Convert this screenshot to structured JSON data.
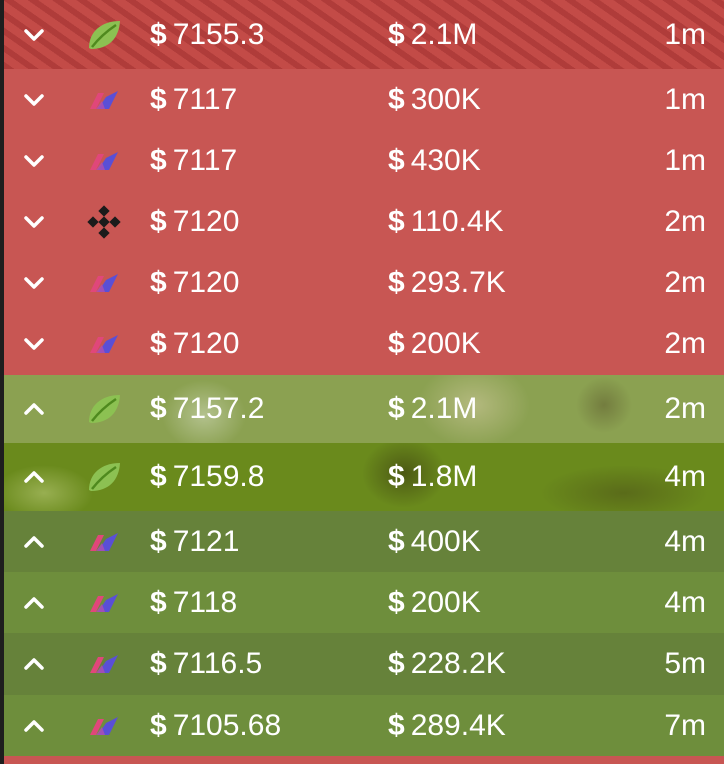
{
  "colors": {
    "sell_bg": "#c85653",
    "buy_bg_a": "#6e8e3c",
    "buy_bg_b": "#66823a",
    "text": "#ffffff"
  },
  "trades": [
    {
      "side": "sell",
      "direction_icon": "chevron-down-icon",
      "exchange_icon": "leaf-icon",
      "currency": "$",
      "price": "7155.3",
      "amount": "2.1M",
      "time": "1m",
      "highlight": "large"
    },
    {
      "side": "sell",
      "direction_icon": "chevron-down-icon",
      "exchange_icon": "flag-icon",
      "currency": "$",
      "price": "7117",
      "amount": "300K",
      "time": "1m"
    },
    {
      "side": "sell",
      "direction_icon": "chevron-down-icon",
      "exchange_icon": "flag-icon",
      "currency": "$",
      "price": "7117",
      "amount": "430K",
      "time": "1m"
    },
    {
      "side": "sell",
      "direction_icon": "chevron-down-icon",
      "exchange_icon": "diamond-icon",
      "currency": "$",
      "price": "7120",
      "amount": "110.4K",
      "time": "2m"
    },
    {
      "side": "sell",
      "direction_icon": "chevron-down-icon",
      "exchange_icon": "flag-icon",
      "currency": "$",
      "price": "7120",
      "amount": "293.7K",
      "time": "2m"
    },
    {
      "side": "sell",
      "direction_icon": "chevron-down-icon",
      "exchange_icon": "flag-icon",
      "currency": "$",
      "price": "7120",
      "amount": "200K",
      "time": "2m"
    },
    {
      "side": "buy",
      "direction_icon": "chevron-up-icon",
      "exchange_icon": "leaf-icon",
      "currency": "$",
      "price": "7157.2",
      "amount": "2.1M",
      "time": "2m",
      "highlight": "large"
    },
    {
      "side": "buy",
      "direction_icon": "chevron-up-icon",
      "exchange_icon": "leaf-icon",
      "currency": "$",
      "price": "7159.8",
      "amount": "1.8M",
      "time": "4m",
      "highlight": "large"
    },
    {
      "side": "buy",
      "direction_icon": "chevron-up-icon",
      "exchange_icon": "flag-icon",
      "currency": "$",
      "price": "7121",
      "amount": "400K",
      "time": "4m"
    },
    {
      "side": "buy",
      "direction_icon": "chevron-up-icon",
      "exchange_icon": "flag-icon",
      "currency": "$",
      "price": "7118",
      "amount": "200K",
      "time": "4m"
    },
    {
      "side": "buy",
      "direction_icon": "chevron-up-icon",
      "exchange_icon": "flag-icon",
      "currency": "$",
      "price": "7116.5",
      "amount": "228.2K",
      "time": "5m"
    },
    {
      "side": "buy",
      "direction_icon": "chevron-up-icon",
      "exchange_icon": "flag-icon",
      "currency": "$",
      "price": "7105.68",
      "amount": "289.4K",
      "time": "7m"
    }
  ]
}
